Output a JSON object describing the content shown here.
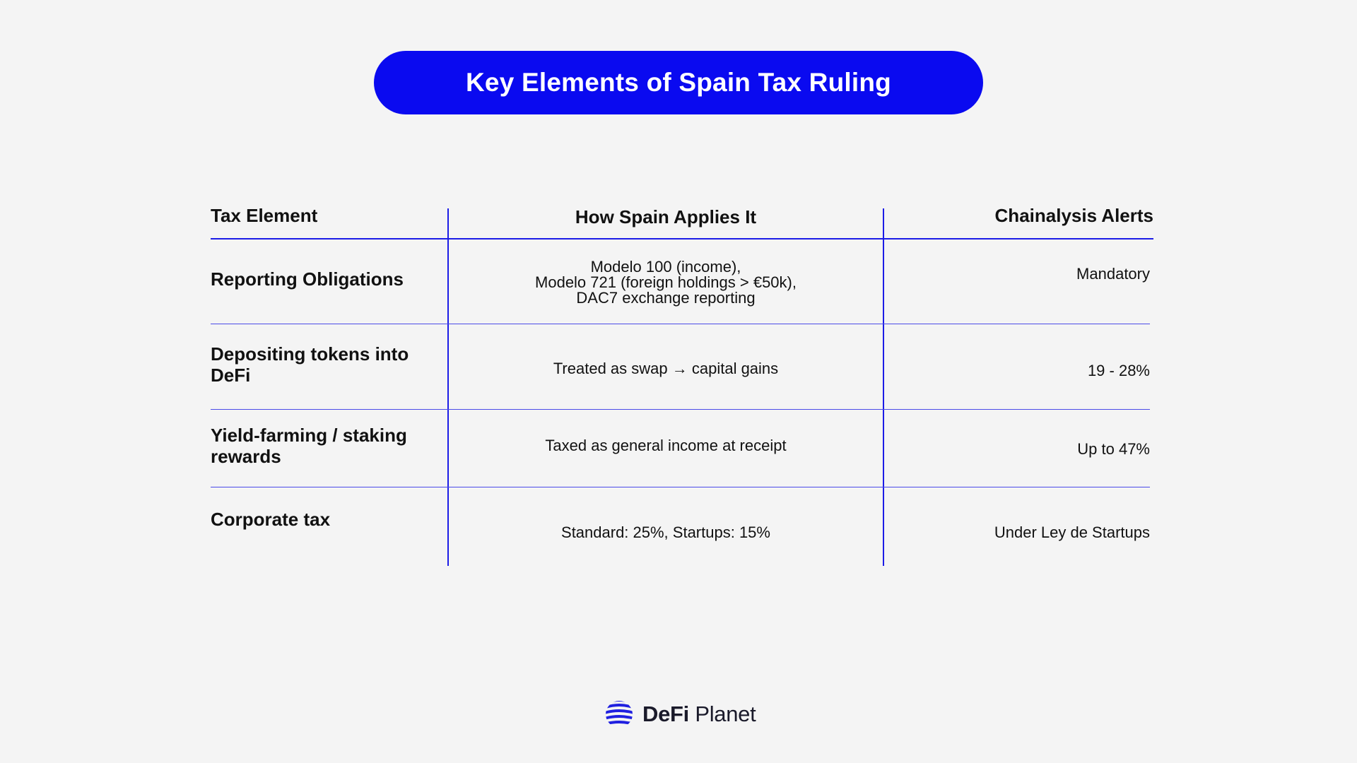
{
  "title": "Key Elements of Spain Tax Ruling",
  "table": {
    "headers": [
      "Tax Element",
      "How Spain Applies It",
      "Chainalysis Alerts"
    ],
    "rows": [
      {
        "element": "Reporting Obligations",
        "application_lines": [
          "Modelo 100 (income),",
          "Modelo 721 (foreign holdings > €50k),",
          "DAC7 exchange reporting"
        ],
        "alert": "Mandatory"
      },
      {
        "element_lines": [
          "Depositing tokens into",
          "DeFi"
        ],
        "application": "Treated as swap → capital gains",
        "alert": "19 - 28%"
      },
      {
        "element_lines": [
          "Yield-farming / staking",
          "rewards"
        ],
        "application": "Taxed as general income at receipt",
        "alert": "Up to 47%"
      },
      {
        "element": "Corporate tax",
        "application": "Standard: 25%, Startups: 15%",
        "alert": "Under Ley de Startups"
      }
    ]
  },
  "logo": {
    "name_bold": "DeFi",
    "name_regular": "Planet",
    "icon": "striped-globe-icon"
  },
  "colors": {
    "accent": "#0a0af0",
    "background": "#f4f4f4",
    "text": "#111111",
    "pill_text": "#ffffff"
  }
}
